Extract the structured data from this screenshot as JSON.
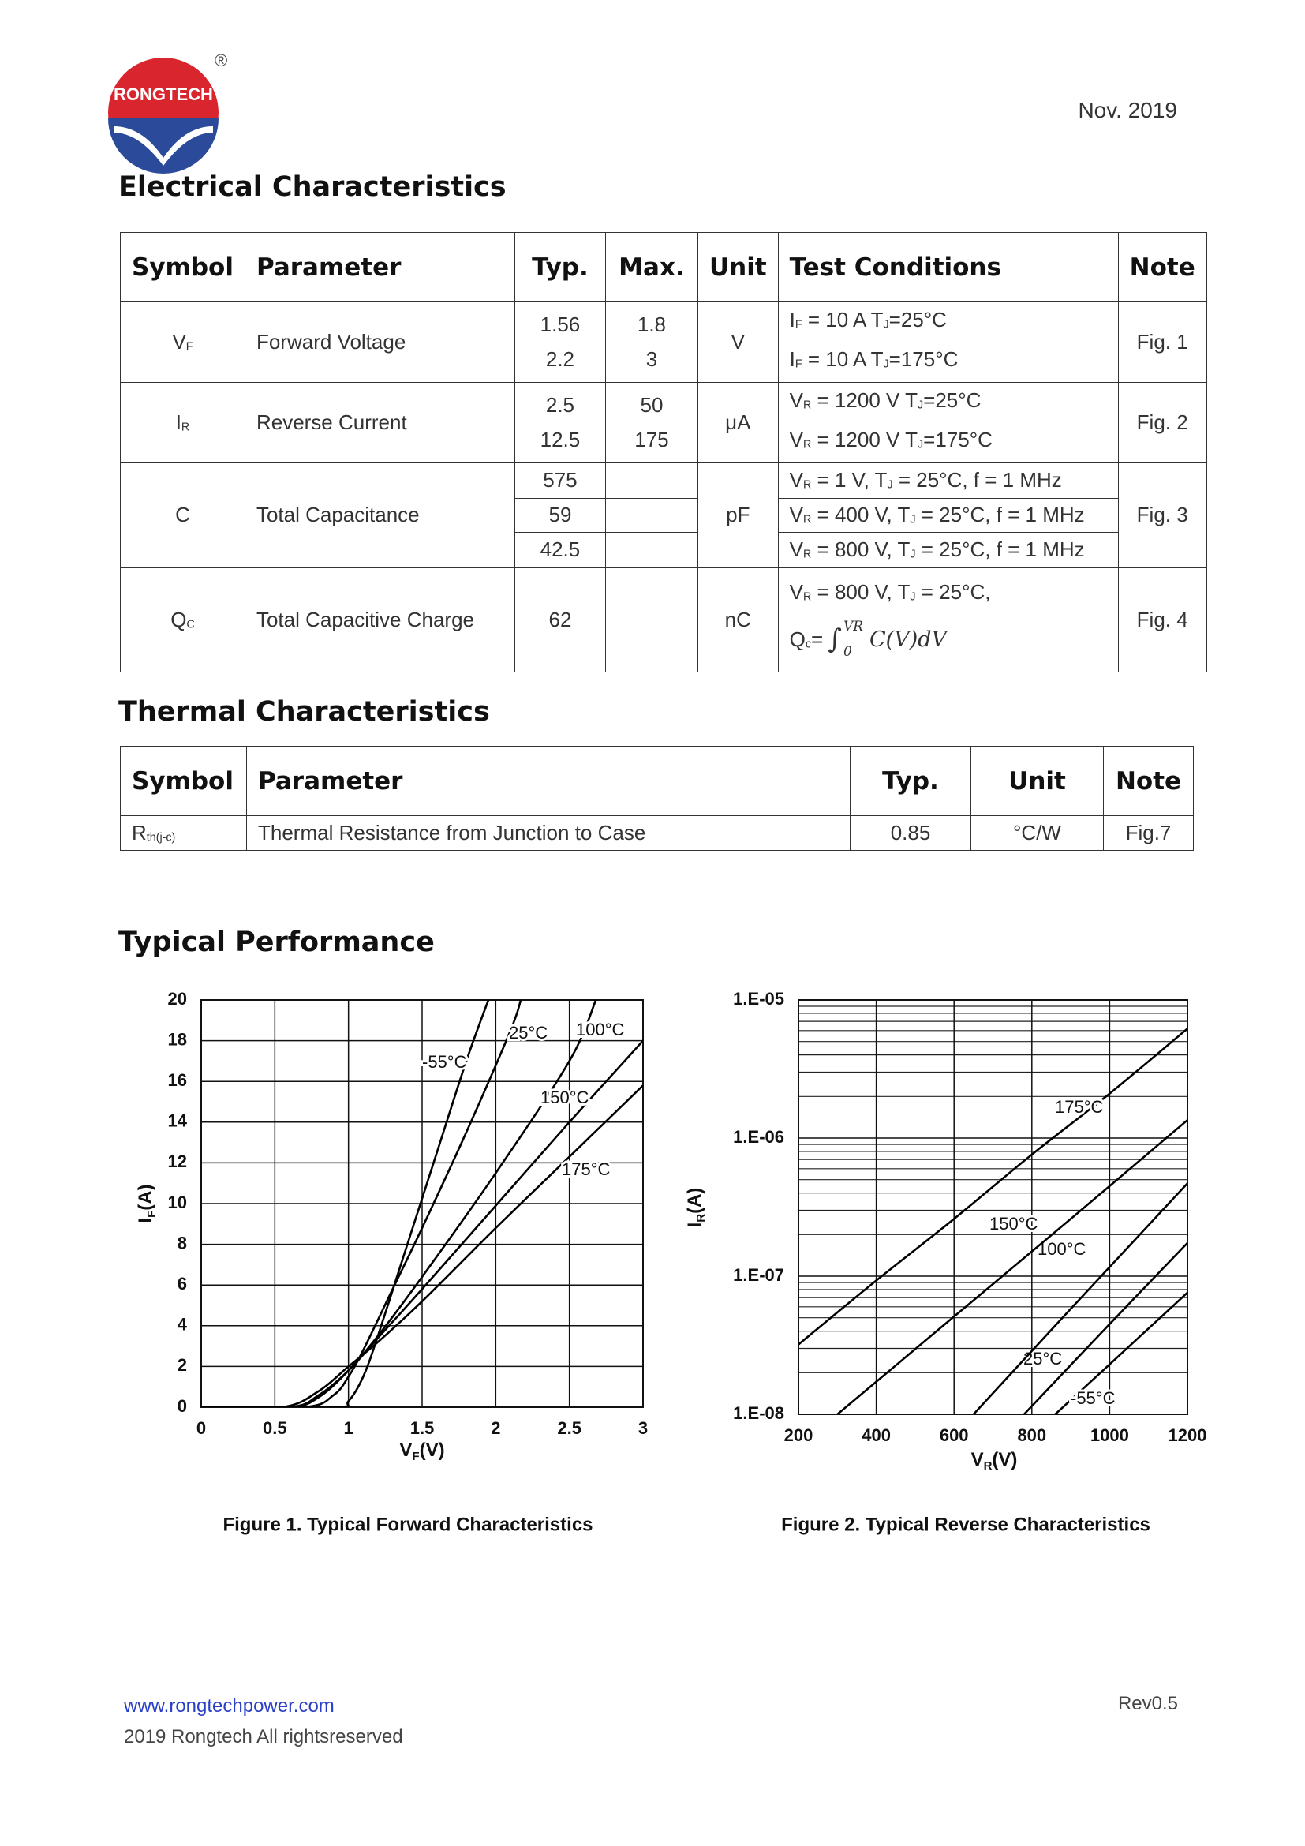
{
  "header": {
    "logo_text": "RONGTECH",
    "registered": "®",
    "date": "Nov. 2019"
  },
  "electrical": {
    "title": "Electrical Characteristics",
    "columns": [
      "Symbol",
      "Parameter",
      "Typ.",
      "Max.",
      "Unit",
      "Test Conditions",
      "Note"
    ],
    "rows": [
      {
        "symbol": [
          "V",
          "F"
        ],
        "parameter": "Forward Voltage",
        "typ": [
          1.56,
          2.2
        ],
        "max": [
          1.8,
          3
        ],
        "unit": "V",
        "conditions": [
          [
            "I",
            "F",
            " = 10 A T",
            "J",
            "=25°C"
          ],
          [
            "I",
            "F",
            " = 10 A T",
            "J",
            "=175°C"
          ]
        ],
        "note": "Fig. 1"
      },
      {
        "symbol": [
          "I",
          "R"
        ],
        "parameter": "Reverse Current",
        "typ": [
          2.5,
          12.5
        ],
        "max": [
          50,
          175
        ],
        "unit": "μA",
        "conditions": [
          [
            "V",
            "R",
            " = 1200 V T",
            "J",
            "=25°C"
          ],
          [
            "V",
            "R",
            " = 1200 V T",
            "J",
            "=175°C"
          ]
        ],
        "note": "Fig. 2"
      },
      {
        "symbol": [
          "C"
        ],
        "parameter": "Total Capacitance",
        "typ": [
          575,
          59,
          42.5
        ],
        "max": [],
        "unit": "pF",
        "conditions": [
          [
            "V",
            "R",
            " = 1 V, T",
            "J",
            " = 25°C, f = 1 MHz"
          ],
          [
            "V",
            "R",
            " = 400 V, T",
            "J",
            " = 25°C, f = 1 MHz"
          ],
          [
            "V",
            "R",
            " = 800 V, T",
            "J",
            " = 25°C, f = 1 MHz"
          ]
        ],
        "note": "Fig. 3"
      },
      {
        "symbol": [
          "Q",
          "C"
        ],
        "parameter": "Total Capacitive Charge",
        "typ": [
          62
        ],
        "max": [],
        "unit": "nC",
        "conditions": [
          [
            "V",
            "R",
            " = 800 V, T",
            "J",
            " = 25°C,"
          ]
        ],
        "formula": {
          "lhs": [
            "Q",
            "c",
            "="
          ],
          "integral": "∫",
          "upper": "VR",
          "lower": "0",
          "integrand": "C(V)dV"
        },
        "note": "Fig. 4"
      }
    ]
  },
  "thermal": {
    "title": "Thermal Characteristics",
    "columns": [
      "Symbol",
      "Parameter",
      "Typ.",
      "Unit",
      "Note"
    ],
    "rows": [
      {
        "symbol": [
          "R",
          "th(j-c)"
        ],
        "parameter": "Thermal Resistance from Junction to Case",
        "typ": 0.85,
        "unit": "°C/W",
        "note": "Fig.7"
      }
    ]
  },
  "performance": {
    "title": "Typical Performance"
  },
  "chart_data": [
    {
      "type": "line",
      "title": "Figure 1. Typical Forward Characteristics",
      "x_label": {
        "symbol": "V",
        "subscript": "F",
        "unit": "(V)"
      },
      "y_label": {
        "symbol": "I",
        "subscript": "F",
        "unit": "(A)"
      },
      "xlim": [
        0,
        3
      ],
      "ylim": [
        0,
        20
      ],
      "xticks": [
        0,
        0.5,
        1,
        1.5,
        2,
        2.5,
        3
      ],
      "yticks": [
        0,
        2,
        4,
        6,
        8,
        10,
        12,
        14,
        16,
        18,
        20
      ],
      "grid": true,
      "series": [
        {
          "name": "-55°C",
          "color": "#000000",
          "x": [
            0,
            0.9,
            1.0,
            1.1,
            1.2,
            1.4,
            1.6,
            1.8,
            1.95
          ],
          "values": [
            0,
            0,
            0.3,
            1.5,
            3.5,
            8,
            12.5,
            17,
            20
          ]
        },
        {
          "name": "25°C",
          "color": "#000000",
          "x": [
            0,
            0.7,
            0.9,
            1.0,
            1.1,
            1.3,
            1.5,
            1.8,
            2.1,
            2.17
          ],
          "values": [
            0,
            0,
            0.6,
            1.5,
            2.8,
            5.8,
            8.8,
            13.5,
            18.5,
            20
          ]
        },
        {
          "name": "100°C",
          "color": "#000000",
          "x": [
            0,
            0.6,
            0.8,
            1.0,
            1.2,
            1.5,
            2,
            2.5,
            2.68
          ],
          "values": [
            0,
            0,
            0.5,
            1.8,
            3.5,
            6.4,
            11.5,
            17,
            20
          ]
        },
        {
          "name": "150°C",
          "color": "#000000",
          "x": [
            0,
            0.6,
            0.8,
            1.0,
            1.2,
            1.5,
            2,
            2.5,
            3
          ],
          "values": [
            0,
            0,
            0.6,
            1.8,
            3.4,
            5.8,
            9.9,
            14,
            18
          ]
        },
        {
          "name": "175°C",
          "color": "#000000",
          "x": [
            0,
            0.55,
            0.8,
            1.0,
            1.2,
            1.5,
            2,
            2.5,
            3
          ],
          "values": [
            0,
            0,
            0.8,
            2,
            3.2,
            5.2,
            8.8,
            12.3,
            15.8
          ]
        }
      ]
    },
    {
      "type": "line",
      "title": "Figure 2. Typical Reverse Characteristics",
      "x_label": {
        "symbol": "V",
        "subscript": "R",
        "unit": "(V)"
      },
      "y_label": {
        "symbol": "I",
        "subscript": "R",
        "unit": "(A)"
      },
      "xlim": [
        200,
        1200
      ],
      "ylim": [
        1e-08,
        1e-05
      ],
      "xticks": [
        200,
        400,
        600,
        800,
        1000,
        1200
      ],
      "yticks": [
        {
          "value": 1e-08,
          "label": "1.E-08"
        },
        {
          "value": 1e-07,
          "label": "1.E-07"
        },
        {
          "value": 1e-06,
          "label": "1.E-06"
        },
        {
          "value": 1e-05,
          "label": "1.E-05"
        }
      ],
      "log_y": true,
      "grid": true,
      "minor_grid": true,
      "series": [
        {
          "name": "-55°C",
          "color": "#000000",
          "x": [
            860,
            1000,
            1200
          ],
          "values": [
            1e-08,
            2.3e-08,
            7.6e-08
          ]
        },
        {
          "name": "25°C",
          "color": "#000000",
          "x": [
            780,
            1000,
            1200
          ],
          "values": [
            1e-08,
            4.5e-08,
            1.74e-07
          ]
        },
        {
          "name": "100°C",
          "color": "#000000",
          "x": [
            650,
            900,
            1200
          ],
          "values": [
            1e-08,
            5.8e-08,
            4.7e-07
          ]
        },
        {
          "name": "150°C",
          "color": "#000000",
          "x": [
            300,
            600,
            900,
            1200
          ],
          "values": [
            1e-08,
            5.1e-08,
            2.6e-07,
            1.35e-06
          ]
        },
        {
          "name": "175°C",
          "color": "#000000",
          "x": [
            200,
            400,
            600,
            800,
            1000,
            1200
          ],
          "values": [
            3.2e-08,
            9.3e-08,
            2.6e-07,
            7.6e-07,
            2.1e-06,
            6.2e-06
          ]
        }
      ]
    }
  ],
  "footer": {
    "website": "www.rongtechpower.com",
    "copyright": "2019 Rongtech All rightsreserved",
    "revision": "Rev0.5"
  }
}
